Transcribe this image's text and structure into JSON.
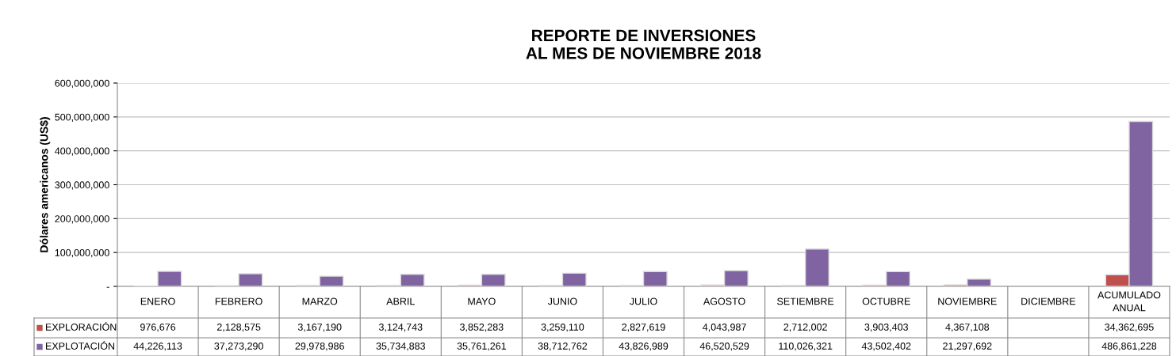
{
  "chart_data": {
    "type": "bar",
    "title": "REPORTE DE INVERSIONES\nAL MES DE NOVIEMBRE 2018",
    "ylabel": "Dólares americanos (US$)",
    "categories": [
      "ENERO",
      "FEBRERO",
      "MARZO",
      "ABRIL",
      "MAYO",
      "JUNIO",
      "JULIO",
      "AGOSTO",
      "SETIEMBRE",
      "OCTUBRE",
      "NOVIEMBRE",
      "DICIEMBRE",
      "ACUMULADO\nANUAL"
    ],
    "series": [
      {
        "name": "EXPLORACIÓN",
        "color": "#c0504d",
        "values": [
          976676,
          2128575,
          3167190,
          3124743,
          3852283,
          3259110,
          2827619,
          4043987,
          2712002,
          3903403,
          4367108,
          null,
          34362695
        ],
        "value_labels": [
          "976,676",
          "2,128,575",
          "3,167,190",
          "3,124,743",
          "3,852,283",
          "3,259,110",
          "2,827,619",
          "4,043,987",
          "2,712,002",
          "3,903,403",
          "4,367,108",
          null,
          "34,362,695"
        ]
      },
      {
        "name": "EXPLOTACIÓN",
        "color": "#8064a2",
        "values": [
          44226113,
          37273290,
          29978986,
          35734883,
          35761261,
          38712762,
          43826989,
          46520529,
          110026321,
          43502402,
          21297692,
          null,
          486861228
        ],
        "value_labels": [
          "44,226,113",
          "37,273,290",
          "29,978,986",
          "35,734,883",
          "35,761,261",
          "38,712,762",
          "43,826,989",
          "46,520,529",
          "110,026,321",
          "43,502,402",
          "21,297,692",
          null,
          "486,861,228"
        ]
      }
    ],
    "ylim": [
      0,
      600000000
    ],
    "yticks": [
      {
        "value": 0,
        "label": "-"
      },
      {
        "value": 100000000,
        "label": "100,000,000"
      },
      {
        "value": 200000000,
        "label": "200,000,000"
      },
      {
        "value": 300000000,
        "label": "300,000,000"
      },
      {
        "value": 400000000,
        "label": "400,000,000"
      },
      {
        "value": 500000000,
        "label": "500,000,000"
      },
      {
        "value": 600000000,
        "label": "600,000,000"
      }
    ],
    "grid": "y",
    "legend": "bottom left"
  }
}
